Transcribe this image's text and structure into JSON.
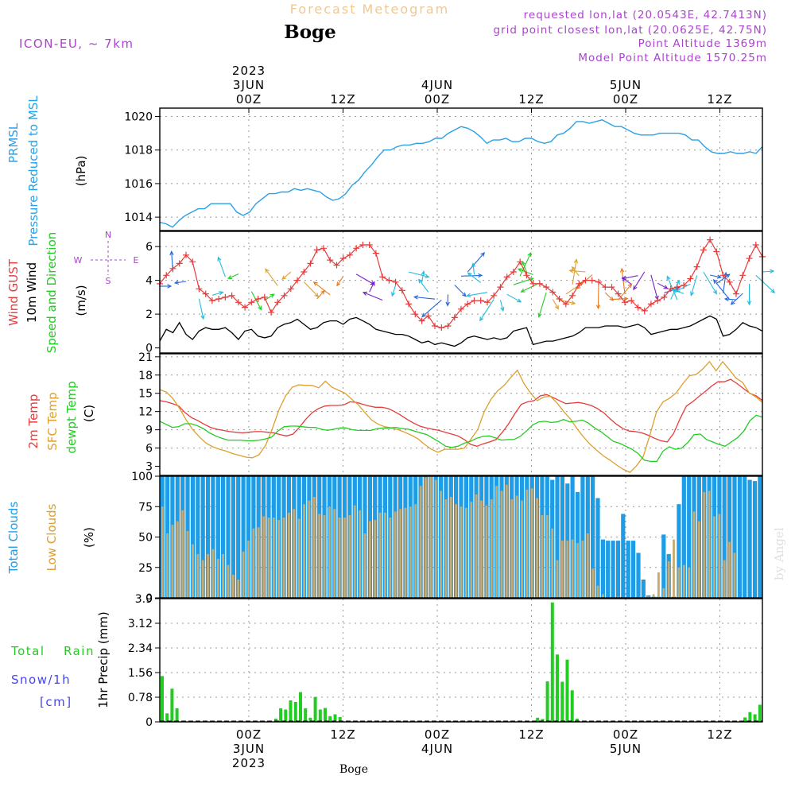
{
  "header": {
    "title": "Forecast Meteogram",
    "location": "Boge",
    "model": "ICON-EU, ~ 7km",
    "requested": "requested lon,lat (20.0543E, 42.7413N)",
    "gridpoint": "grid point closest lon,lat (20.0625E, 42.75N)",
    "point_altitude": "Point Altitude 1369m",
    "model_altitude": "Model Point Altitude 1570.25m",
    "credit": "by Angel",
    "footer_location": "Boge"
  },
  "time_axis": {
    "top_labels": [
      {
        "hour": 0,
        "lines": [
          "2023",
          "3JUN",
          "00Z"
        ]
      },
      {
        "hour": 12,
        "lines": [
          "12Z"
        ]
      },
      {
        "hour": 24,
        "lines": [
          "4JUN",
          "00Z"
        ]
      },
      {
        "hour": 36,
        "lines": [
          "12Z"
        ]
      },
      {
        "hour": 48,
        "lines": [
          "5JUN",
          "00Z"
        ]
      },
      {
        "hour": 60,
        "lines": [
          "12Z"
        ]
      }
    ],
    "bottom_labels": [
      {
        "hour": 0,
        "lines": [
          "00Z",
          "3JUN",
          "2023"
        ]
      },
      {
        "hour": 12,
        "lines": [
          "12Z"
        ]
      },
      {
        "hour": 24,
        "lines": [
          "00Z",
          "4JUN"
        ]
      },
      {
        "hour": 36,
        "lines": [
          "12Z"
        ]
      },
      {
        "hour": 48,
        "lines": [
          "00Z",
          "5JUN"
        ]
      },
      {
        "hour": 60,
        "lines": [
          "12Z"
        ]
      }
    ]
  },
  "colors": {
    "pressure": "#2aa0e6",
    "gust": "#e63c3c",
    "wind": "#000000",
    "temp": "#e63c3c",
    "sfc": "#dca030",
    "dewpt": "#22cc22",
    "total_clouds": "#1e9ce6",
    "low_clouds": "#c8aa6e",
    "rain": "#22cc22",
    "snow": "#4444ee",
    "compass": "#aa44cc",
    "header_purple": "#aa44cc",
    "title_orange": "#f0c890"
  },
  "chart_data": [
    {
      "id": "pressure",
      "type": "line",
      "ylabel": [
        "PRMSL",
        "Pressure Reduced to MSL",
        "(hPa)"
      ],
      "ylim": [
        1013.2,
        1020.5
      ],
      "yticks": [
        1014,
        1016,
        1018,
        1020
      ],
      "series": [
        {
          "name": "PRMSL",
          "values": [
            1013.7,
            1013.6,
            1013.4,
            1013.8,
            1014.1,
            1014.3,
            1014.5,
            1014.5,
            1014.8,
            1014.8,
            1014.8,
            1014.8,
            1014.3,
            1014.1,
            1014.3,
            1014.8,
            1015.1,
            1015.4,
            1015.4,
            1015.5,
            1015.5,
            1015.7,
            1015.6,
            1015.7,
            1015.6,
            1015.5,
            1015.2,
            1015.0,
            1015.1,
            1015.4,
            1015.9,
            1016.2,
            1016.7,
            1017.1,
            1017.6,
            1018.0,
            1018.0,
            1018.2,
            1018.3,
            1018.3,
            1018.4,
            1018.4,
            1018.5,
            1018.7,
            1018.7,
            1019.0,
            1019.2,
            1019.4,
            1019.3,
            1019.1,
            1018.8,
            1018.4,
            1018.6,
            1018.6,
            1018.7,
            1018.5,
            1018.5,
            1018.7,
            1018.7,
            1018.5,
            1018.4,
            1018.5,
            1018.9,
            1019.0,
            1019.3,
            1019.7,
            1019.7,
            1019.6,
            1019.7,
            1019.8,
            1019.6,
            1019.4,
            1019.4,
            1019.2,
            1019.0,
            1018.9,
            1018.9,
            1018.9,
            1019.0,
            1019.0,
            1019.0,
            1019.0,
            1018.9,
            1018.6,
            1018.6,
            1018.2,
            1017.9,
            1017.8,
            1017.8,
            1017.9,
            1017.8,
            1017.8,
            1017.9,
            1017.8,
            1018.2
          ]
        }
      ]
    },
    {
      "id": "wind",
      "type": "line",
      "ylabel": [
        "Wind GUST",
        "10m Wind",
        "Speed and Direction",
        "(m/s)"
      ],
      "compass": {
        "n": "N",
        "s": "S",
        "e": "E",
        "w": "W"
      },
      "ylim": [
        -0.3,
        6.9
      ],
      "yticks": [
        0,
        2,
        4,
        6
      ],
      "gust": [
        3.8,
        4.3,
        4.7,
        5.0,
        5.5,
        5.1,
        3.5,
        3.2,
        2.8,
        2.9,
        3.0,
        3.1,
        2.7,
        2.4,
        2.7,
        2.9,
        3.0,
        2.1,
        2.7,
        3.1,
        3.5,
        4.0,
        4.5,
        5.0,
        5.8,
        5.9,
        5.2,
        4.9,
        5.3,
        5.5,
        5.9,
        6.1,
        6.1,
        5.6,
        4.2,
        4.0,
        3.9,
        3.4,
        2.6,
        2.0,
        1.6,
        1.9,
        1.3,
        1.2,
        1.3,
        1.8,
        2.3,
        2.6,
        2.8,
        2.8,
        2.7,
        3.1,
        3.6,
        4.2,
        4.5,
        5.1,
        4.3,
        3.8,
        3.8,
        3.6,
        3.3,
        2.9,
        2.6,
        3.1,
        3.8,
        4.0,
        4.0,
        3.9,
        3.6,
        3.6,
        3.2,
        2.7,
        2.8,
        2.4,
        2.2,
        2.6,
        2.8,
        3.0,
        3.5,
        3.6,
        3.7,
        4.1,
        4.8,
        5.8,
        6.4,
        5.7,
        4.3,
        3.9,
        3.2,
        4.3,
        5.3,
        6.1,
        5.4
      ],
      "wind": [
        0.4,
        1.1,
        0.9,
        1.5,
        0.8,
        0.5,
        1.0,
        1.2,
        1.1,
        1.1,
        1.2,
        0.9,
        0.5,
        1.0,
        1.1,
        0.7,
        0.6,
        0.7,
        1.2,
        1.4,
        1.5,
        1.7,
        1.4,
        1.1,
        1.2,
        1.5,
        1.6,
        1.6,
        1.4,
        1.7,
        1.8,
        1.6,
        1.4,
        1.1,
        1.0,
        0.9,
        0.8,
        0.8,
        0.7,
        0.5,
        0.3,
        0.4,
        0.2,
        0.3,
        0.2,
        0.1,
        0.3,
        0.6,
        0.7,
        0.6,
        0.5,
        0.6,
        0.5,
        0.6,
        1.0,
        1.1,
        1.2,
        0.2,
        0.3,
        0.4,
        0.4,
        0.5,
        0.6,
        0.7,
        0.9,
        1.2,
        1.2,
        1.2,
        1.3,
        1.3,
        1.3,
        1.2,
        1.3,
        1.4,
        1.2,
        0.8,
        0.9,
        1.0,
        1.1,
        1.1,
        1.2,
        1.3,
        1.5,
        1.7,
        1.9,
        1.7,
        0.7,
        0.8,
        1.1,
        1.5,
        1.3,
        1.2,
        1.0
      ]
    },
    {
      "id": "temperature",
      "type": "line",
      "ylabel": [
        "2m Temp",
        "SFC Temp",
        "dewpt Temp",
        "(C)"
      ],
      "ylim": [
        1.5,
        21.5
      ],
      "yticks": [
        3,
        6,
        9,
        12,
        15,
        18,
        21
      ],
      "series": [
        {
          "name": "2m Temp",
          "values": [
            13.8,
            13.6,
            13.3,
            12.9,
            11.8,
            11.0,
            10.5,
            9.9,
            9.4,
            9.1,
            8.9,
            8.7,
            8.6,
            8.5,
            8.6,
            8.7,
            8.7,
            8.6,
            8.5,
            8.2,
            8.0,
            8.3,
            9.4,
            10.7,
            11.8,
            12.5,
            12.9,
            13.0,
            13.0,
            13.1,
            13.6,
            13.5,
            13.2,
            12.9,
            12.7,
            12.7,
            12.5,
            12.0,
            11.4,
            10.7,
            10.1,
            9.6,
            9.3,
            9.1,
            8.9,
            8.6,
            8.3,
            8.0,
            7.4,
            6.6,
            6.3,
            6.7,
            7.0,
            7.4,
            8.6,
            10.0,
            11.7,
            13.2,
            13.6,
            13.8,
            14.6,
            14.8,
            14.3,
            13.8,
            13.3,
            13.4,
            13.5,
            13.3,
            13.0,
            12.5,
            11.8,
            10.8,
            9.9,
            9.2,
            8.8,
            8.7,
            8.5,
            8.1,
            7.6,
            7.2,
            7.0,
            8.4,
            10.8,
            12.9,
            13.6,
            14.5,
            15.3,
            16.2,
            16.9,
            16.9,
            17.3,
            16.6,
            15.8,
            15.0,
            14.6,
            13.8
          ]
        },
        {
          "name": "SFC Temp",
          "values": [
            15.6,
            15.2,
            14.1,
            12.5,
            10.6,
            9.0,
            7.8,
            6.8,
            6.2,
            5.8,
            5.5,
            5.1,
            4.8,
            4.5,
            4.4,
            4.9,
            6.5,
            9.2,
            12.3,
            14.6,
            16.0,
            16.4,
            16.3,
            16.3,
            15.9,
            17.0,
            16.0,
            15.5,
            15.0,
            14.0,
            13.1,
            11.8,
            10.6,
            9.9,
            9.5,
            9.3,
            9.0,
            8.6,
            8.1,
            7.5,
            6.6,
            5.8,
            5.3,
            5.8,
            5.8,
            5.8,
            6.0,
            7.5,
            9.0,
            12.0,
            14.0,
            15.4,
            16.3,
            17.6,
            18.8,
            16.6,
            15.0,
            13.8,
            14.4,
            14.5,
            13.4,
            12.0,
            10.8,
            9.2,
            7.8,
            6.6,
            5.6,
            4.7,
            4.0,
            3.2,
            2.5,
            2.0,
            3.1,
            4.6,
            8.1,
            11.9,
            13.6,
            14.2,
            15.1,
            16.6,
            17.9,
            18.1,
            19.0,
            20.2,
            18.7,
            20.2,
            18.9,
            17.5,
            16.8,
            15.1,
            14.4,
            13.5
          ]
        },
        {
          "name": "dewpt Temp",
          "values": [
            10.4,
            9.9,
            9.4,
            9.5,
            10.0,
            10.0,
            9.7,
            9.2,
            8.5,
            8.0,
            7.6,
            7.3,
            7.3,
            7.3,
            7.2,
            7.2,
            7.3,
            7.5,
            7.8,
            8.8,
            9.5,
            9.6,
            9.6,
            9.5,
            9.4,
            9.4,
            9.1,
            8.9,
            9.1,
            9.3,
            9.3,
            9.0,
            8.9,
            8.9,
            8.9,
            9.2,
            9.3,
            9.3,
            9.4,
            9.2,
            9.1,
            8.8,
            8.5,
            8.2,
            7.6,
            7.0,
            6.3,
            6.1,
            6.3,
            6.8,
            7.1,
            7.6,
            7.9,
            8.0,
            7.7,
            7.3,
            7.4,
            7.4,
            7.9,
            8.8,
            9.8,
            10.3,
            10.4,
            10.2,
            10.3,
            10.7,
            10.3,
            10.4,
            10.6,
            10.1,
            9.3,
            8.7,
            7.9,
            7.1,
            6.8,
            6.3,
            5.8,
            5.1,
            4.0,
            3.8,
            3.8,
            5.5,
            6.2,
            5.8,
            6.0,
            6.9,
            8.2,
            8.3,
            7.4,
            7.0,
            6.6,
            6.3,
            7.0,
            7.7,
            8.8,
            10.5,
            11.4,
            11.1
          ]
        }
      ]
    },
    {
      "id": "clouds",
      "type": "bar",
      "ylabel": [
        "Total Clouds",
        "Low Clouds",
        "(%)"
      ],
      "ylim": [
        0,
        100
      ],
      "yticks": [
        0,
        25,
        50,
        75,
        100
      ],
      "series": [
        {
          "name": "Total Clouds",
          "values": [
            100,
            100,
            100,
            100,
            100,
            100,
            100,
            100,
            100,
            100,
            100,
            100,
            100,
            100,
            100,
            100,
            100,
            100,
            100,
            100,
            100,
            100,
            100,
            100,
            100,
            100,
            100,
            100,
            100,
            100,
            100,
            100,
            100,
            100,
            100,
            100,
            100,
            100,
            100,
            100,
            100,
            100,
            100,
            100,
            100,
            100,
            100,
            100,
            100,
            100,
            100,
            100,
            100,
            100,
            100,
            100,
            100,
            100,
            100,
            100,
            100,
            100,
            100,
            100,
            100,
            100,
            100,
            100,
            100,
            100,
            100,
            100,
            100,
            100,
            100,
            100,
            100,
            97,
            100,
            100,
            94,
            100,
            87,
            100,
            100,
            100,
            82,
            48,
            47,
            47,
            47,
            69,
            47,
            47,
            37,
            15,
            2,
            1,
            1,
            52,
            36,
            1,
            77,
            100,
            100,
            100,
            100,
            100,
            100,
            100,
            100,
            100,
            100,
            100,
            100,
            100,
            97,
            96,
            100
          ]
        },
        {
          "name": "Low Clouds",
          "values": [
            75,
            53,
            60,
            63,
            72,
            55,
            44,
            36,
            31,
            36,
            40,
            32,
            36,
            27,
            19,
            15,
            38,
            47,
            57,
            58,
            67,
            66,
            66,
            64,
            66,
            70,
            73,
            65,
            77,
            80,
            83,
            69,
            68,
            75,
            73,
            66,
            66,
            68,
            76,
            72,
            53,
            63,
            64,
            70,
            70,
            66,
            71,
            73,
            74,
            75,
            77,
            92,
            99,
            100,
            97,
            88,
            81,
            83,
            77,
            75,
            74,
            79,
            85,
            80,
            76,
            81,
            92,
            88,
            93,
            81,
            84,
            80,
            89,
            90,
            82,
            68,
            68,
            57,
            31,
            47,
            47,
            48,
            45,
            47,
            53,
            24,
            10,
            3,
            0,
            0,
            1,
            0,
            0,
            0,
            0,
            0,
            1,
            3,
            21,
            8,
            30,
            48,
            25,
            27,
            25,
            71,
            63,
            87,
            88,
            67,
            69,
            31,
            46,
            37
          ]
        }
      ]
    },
    {
      "id": "precip",
      "type": "bar",
      "ylabel": [
        "1hr Precip (mm)"
      ],
      "legend": [
        "Total",
        "Rain",
        "Snow/1h",
        "[cm]"
      ],
      "ylim": [
        0,
        3.9
      ],
      "yticks": [
        0,
        0.78,
        1.56,
        2.34,
        3.12,
        3.9
      ],
      "ytick_labels": [
        "0",
        "0.78",
        "1.56",
        "2.34",
        "3.12",
        "3.9"
      ],
      "series": [
        {
          "name": "Total Rain",
          "values": [
            1.45,
            0.27,
            1.05,
            0.43,
            0,
            0,
            0,
            0,
            0,
            0,
            0,
            0,
            0,
            0,
            0,
            0,
            0,
            0,
            0,
            0,
            0,
            0,
            0,
            0.1,
            0.43,
            0.39,
            0.68,
            0.63,
            0.94,
            0.43,
            0.13,
            0.79,
            0.39,
            0.44,
            0.18,
            0.24,
            0.15,
            0,
            0,
            0,
            0,
            0,
            0,
            0,
            0,
            0,
            0,
            0,
            0,
            0,
            0,
            0,
            0,
            0,
            0,
            0,
            0,
            0,
            0,
            0,
            0,
            0,
            0,
            0,
            0,
            0,
            0,
            0,
            0,
            0,
            0,
            0,
            0,
            0,
            0,
            0,
            0.13,
            0.09,
            1.28,
            3.78,
            2.13,
            1.27,
            1.97,
            1.0,
            0.1,
            0,
            0,
            0,
            0,
            0,
            0,
            0,
            0,
            0,
            0,
            0,
            0,
            0,
            0,
            0,
            0,
            0,
            0,
            0,
            0,
            0,
            0,
            0,
            0,
            0,
            0,
            0,
            0,
            0,
            0,
            0,
            0,
            0,
            0.14,
            0.31,
            0.24,
            0.54
          ]
        }
      ]
    }
  ]
}
